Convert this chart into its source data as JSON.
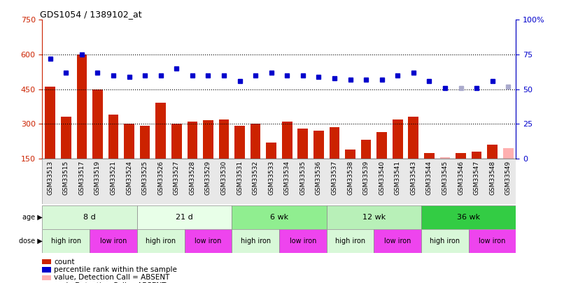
{
  "title": "GDS1054 / 1389102_at",
  "samples": [
    "GSM33513",
    "GSM33515",
    "GSM33517",
    "GSM33519",
    "GSM33521",
    "GSM33524",
    "GSM33525",
    "GSM33526",
    "GSM33527",
    "GSM33528",
    "GSM33529",
    "GSM33530",
    "GSM33531",
    "GSM33532",
    "GSM33533",
    "GSM33534",
    "GSM33535",
    "GSM33536",
    "GSM33537",
    "GSM33538",
    "GSM33539",
    "GSM33540",
    "GSM33541",
    "GSM33543",
    "GSM33544",
    "GSM33545",
    "GSM33546",
    "GSM33547",
    "GSM33548",
    "GSM33549"
  ],
  "counts": [
    460,
    330,
    600,
    450,
    340,
    300,
    290,
    390,
    300,
    310,
    315,
    320,
    290,
    300,
    220,
    310,
    280,
    270,
    285,
    190,
    230,
    265,
    320,
    330,
    175,
    155,
    175,
    180,
    210,
    195
  ],
  "absent_count": [
    false,
    false,
    false,
    false,
    false,
    false,
    false,
    false,
    false,
    false,
    false,
    false,
    false,
    false,
    false,
    false,
    false,
    false,
    false,
    false,
    false,
    false,
    false,
    false,
    false,
    true,
    false,
    false,
    false,
    true
  ],
  "percentile": [
    72,
    62,
    75,
    62,
    60,
    59,
    60,
    60,
    65,
    60,
    60,
    60,
    56,
    60,
    62,
    60,
    60,
    59,
    58,
    57,
    57,
    57,
    60,
    62,
    56,
    51,
    51,
    51,
    56,
    52
  ],
  "absent_pct": [
    false,
    false,
    false,
    false,
    false,
    false,
    false,
    false,
    false,
    false,
    false,
    false,
    false,
    false,
    false,
    false,
    false,
    false,
    false,
    false,
    false,
    false,
    false,
    false,
    false,
    false,
    true,
    false,
    false,
    true
  ],
  "age_groups": [
    {
      "label": "8 d",
      "start": 0,
      "end": 6,
      "color": "#d8f8d8"
    },
    {
      "label": "21 d",
      "start": 6,
      "end": 12,
      "color": "#e8ffe8"
    },
    {
      "label": "6 wk",
      "start": 12,
      "end": 18,
      "color": "#90ee90"
    },
    {
      "label": "12 wk",
      "start": 18,
      "end": 24,
      "color": "#b8f0b8"
    },
    {
      "label": "36 wk",
      "start": 24,
      "end": 30,
      "color": "#33cc44"
    }
  ],
  "dose_groups": [
    {
      "label": "high iron",
      "start": 0,
      "end": 3,
      "color": "#d8f8d8"
    },
    {
      "label": "low iron",
      "start": 3,
      "end": 6,
      "color": "#ee44ee"
    },
    {
      "label": "high iron",
      "start": 6,
      "end": 9,
      "color": "#d8f8d8"
    },
    {
      "label": "low iron",
      "start": 9,
      "end": 12,
      "color": "#ee44ee"
    },
    {
      "label": "high iron",
      "start": 12,
      "end": 15,
      "color": "#d8f8d8"
    },
    {
      "label": "low iron",
      "start": 15,
      "end": 18,
      "color": "#ee44ee"
    },
    {
      "label": "high iron",
      "start": 18,
      "end": 21,
      "color": "#d8f8d8"
    },
    {
      "label": "low iron",
      "start": 21,
      "end": 24,
      "color": "#ee44ee"
    },
    {
      "label": "high iron",
      "start": 24,
      "end": 27,
      "color": "#d8f8d8"
    },
    {
      "label": "low iron",
      "start": 27,
      "end": 30,
      "color": "#ee44ee"
    }
  ],
  "ylim_left": [
    150,
    750
  ],
  "ylim_right": [
    0,
    100
  ],
  "bar_color_present": "#cc2200",
  "bar_color_absent": "#ffb0b0",
  "dot_color_present": "#0000cc",
  "dot_color_absent": "#aaaacc",
  "legend_items": [
    {
      "color": "#cc2200",
      "label": "count"
    },
    {
      "color": "#0000cc",
      "label": "percentile rank within the sample"
    },
    {
      "color": "#ffb0b0",
      "label": "value, Detection Call = ABSENT"
    },
    {
      "color": "#aaaacc",
      "label": "rank, Detection Call = ABSENT"
    }
  ],
  "bg_color": "#f0f0f0"
}
